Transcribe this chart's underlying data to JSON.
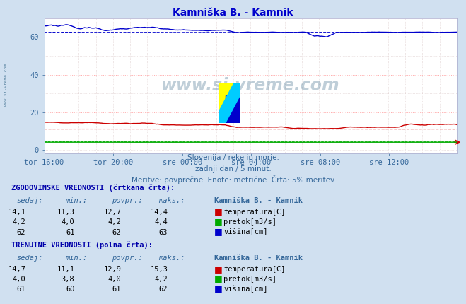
{
  "title": "Kamniška B. - Kamnik",
  "title_color": "#0000cc",
  "bg_color": "#d0e0f0",
  "plot_bg_color": "#ffffff",
  "grid_color_major": "#ffaaaa",
  "grid_color_minor": "#ddcccc",
  "xlabel_color": "#336699",
  "ylabel_color": "#336699",
  "watermark_text": "www.si-vreme.com",
  "watermark_color": "#1a5276",
  "subtitle1": "Slovenija / reke in morje.",
  "subtitle2": "zadnji dan / 5 minut.",
  "subtitle3": "Meritve: povprečne  Enote: metrične  Črta: 5% meritev",
  "subtitle_color": "#336699",
  "x_labels": [
    "tor 16:00",
    "tor 20:00",
    "sre 00:00",
    "sre 04:00",
    "sre 08:00",
    "sre 12:00"
  ],
  "x_positions": [
    0,
    48,
    96,
    144,
    192,
    240
  ],
  "ylim": [
    -2,
    70
  ],
  "yticks": [
    0,
    20,
    40,
    60
  ],
  "n_points": 288,
  "temp_solid_color": "#cc0000",
  "temp_dashed_color": "#cc0000",
  "flow_solid_color": "#00aa00",
  "flow_dashed_color": "#00aa00",
  "height_solid_color": "#0000cc",
  "height_dashed_color": "#0000cc",
  "hist_sedaj_temp": "14,1",
  "hist_min_temp": "11,3",
  "hist_povpr_temp": "12,7",
  "hist_maks_temp": "14,4",
  "hist_sedaj_flow": "4,2",
  "hist_min_flow": "4,0",
  "hist_povpr_flow": "4,2",
  "hist_maks_flow": "4,4",
  "hist_sedaj_height": "62",
  "hist_min_height": "61",
  "hist_povpr_height": "62",
  "hist_maks_height": "63",
  "curr_sedaj_temp": "14,7",
  "curr_min_temp": "11,1",
  "curr_povpr_temp": "12,9",
  "curr_maks_temp": "15,3",
  "curr_sedaj_flow": "4,0",
  "curr_min_flow": "3,8",
  "curr_povpr_flow": "4,0",
  "curr_maks_flow": "4,2",
  "curr_sedaj_height": "61",
  "curr_min_height": "60",
  "curr_povpr_height": "61",
  "curr_maks_height": "62"
}
